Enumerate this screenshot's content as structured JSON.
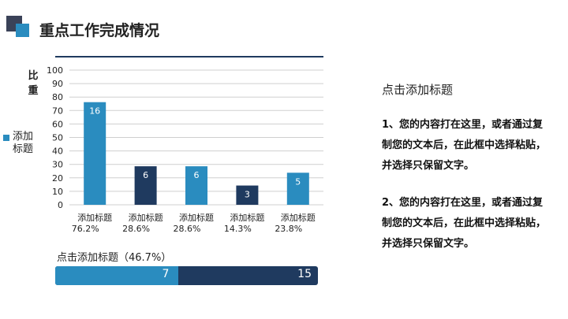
{
  "header": {
    "title": "重点工作完成情况"
  },
  "chart_data": {
    "type": "bar",
    "ylabel": "比重",
    "ylim": [
      0,
      100
    ],
    "yticks": [
      0,
      10,
      20,
      30,
      40,
      50,
      60,
      70,
      80,
      90,
      100
    ],
    "legend": {
      "label": "添加标题",
      "placement": "left",
      "color": "#2a8cbf"
    },
    "categories": [
      {
        "name": "添加标题",
        "percent": "76.2%"
      },
      {
        "name": "添加标题",
        "percent": "28.6%"
      },
      {
        "name": "添加标题",
        "percent": "28.6%"
      },
      {
        "name": "添加标题",
        "percent": "14.3%"
      },
      {
        "name": "添加标题",
        "percent": "23.8%"
      }
    ],
    "values": [
      76.2,
      28.6,
      28.6,
      14.3,
      23.8
    ],
    "data_labels": [
      "16",
      "6",
      "6",
      "3",
      "5"
    ],
    "bar_colors": [
      "#2a8cbf",
      "#1f3a5f",
      "#2a8cbf",
      "#1f3a5f",
      "#2a8cbf"
    ]
  },
  "progress": {
    "label": "点击添加标题（46.7%）",
    "fraction": 0.467,
    "value_a": "7",
    "value_b": "15",
    "color_a": "#2a8cbf",
    "color_b": "#1f3a5f"
  },
  "side": {
    "title": "点击添加标题",
    "para1": "1、您的内容打在这里，或者通过复制您的文本后，在此框中选择粘贴，并选择只保留文字。",
    "para2": "2、您的内容打在这里，或者通过复制您的文本后，在此框中选择粘贴，并选择只保留文字。"
  }
}
